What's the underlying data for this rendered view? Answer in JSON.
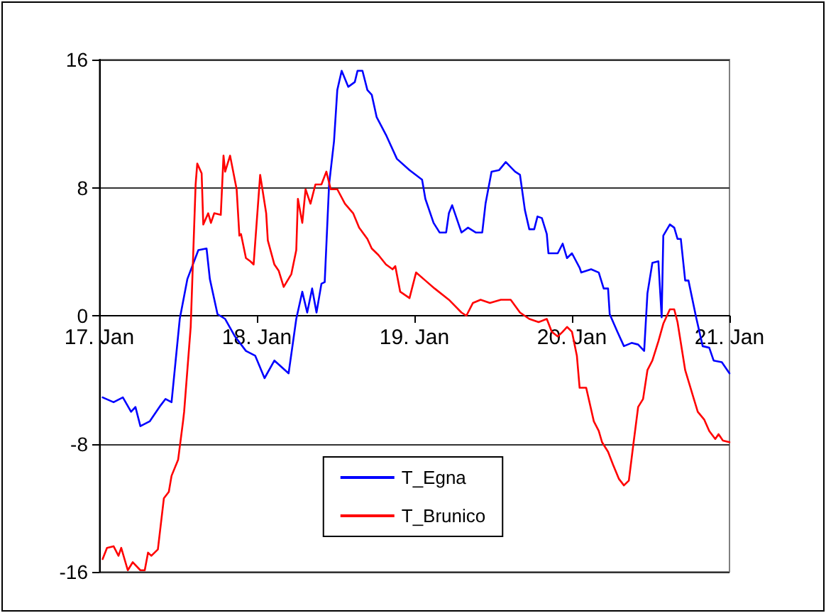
{
  "chart_data": {
    "type": "line",
    "xlim": [
      "--01-17",
      "--01-21"
    ],
    "xticks": [
      {
        "value": "--01-17",
        "label": "17. Jan"
      },
      {
        "value": "--01-18",
        "label": "18. Jan"
      },
      {
        "value": "--01-19",
        "label": "19. Jan"
      },
      {
        "value": "--01-20",
        "label": "20. Jan"
      },
      {
        "value": "--01-21",
        "label": "21. Jan"
      }
    ],
    "ylim": [
      -16,
      16
    ],
    "yticks": [
      -16,
      -8,
      0,
      8,
      16
    ],
    "grid": "y",
    "legend": "bottom",
    "marker": "none",
    "line_style": "solid",
    "series": [
      {
        "name": "T_Egna",
        "color": "#0000ff",
        "x": [
          "--01-17T00:30",
          "--01-17T02:10",
          "--01-17T03:35",
          "--01-17T04:50",
          "--01-17T05:30",
          "--01-17T06:15",
          "--01-17T07:40",
          "--01-17T09:20",
          "--01-17T10:05",
          "--01-17T11:00",
          "--01-17T12:15",
          "--01-17T13:25",
          "--01-17T15:05",
          "--01-17T16:20",
          "--01-17T16:50",
          "--01-17T18:00",
          "--01-17T19:10",
          "--01-17T20:40",
          "--01-17T22:20",
          "--01-17T23:45",
          "--01-18T01:10",
          "--01-18T02:40",
          "--01-18T04:50",
          "--01-18T06:00",
          "--01-18T06:55",
          "--01-18T07:40",
          "--01-18T08:25",
          "--01-18T09:05",
          "--01-18T09:50",
          "--01-18T10:20",
          "--01-18T11:00",
          "--01-18T11:45",
          "--01-18T12:15",
          "--01-18T12:55",
          "--01-18T13:55",
          "--01-18T14:55",
          "--01-18T15:20",
          "--01-18T16:05",
          "--01-18T16:50",
          "--01-18T17:30",
          "--01-18T18:15",
          "--01-18T19:40",
          "--01-18T21:20",
          "--01-18T23:15",
          "--01-19T01:10",
          "--01-19T01:40",
          "--01-19T02:55",
          "--01-19T03:50",
          "--01-19T04:50",
          "--01-19T05:15",
          "--01-19T05:45",
          "--01-19T07:10",
          "--01-19T08:10",
          "--01-19T09:20",
          "--01-19T10:20",
          "--01-19T10:50",
          "--01-19T11:45",
          "--01-19T12:55",
          "--01-19T13:55",
          "--01-19T15:20",
          "--01-19T16:05",
          "--01-19T16:50",
          "--01-19T17:30",
          "--01-19T18:15",
          "--01-19T18:45",
          "--01-19T19:25",
          "--01-19T20:10",
          "--01-19T20:25",
          "--01-19T21:50",
          "--01-19T22:35",
          "--01-19T23:15",
          "--01-20T00:00",
          "--01-20T01:10",
          "--01-20T01:25",
          "--01-20T02:55",
          "--01-20T04:05",
          "--01-20T04:50",
          "--01-20T05:30",
          "--01-20T05:45",
          "--01-20T06:55",
          "--01-20T07:55",
          "--01-20T09:05",
          "--01-20T10:05",
          "--01-20T11:00",
          "--01-20T11:30",
          "--01-20T12:15",
          "--01-20T13:10",
          "--01-20T13:40",
          "--01-20T13:55",
          "--01-20T14:55",
          "--01-20T15:35",
          "--01-20T16:05",
          "--01-20T16:35",
          "--01-20T17:15",
          "--01-20T17:45",
          "--01-20T18:55",
          "--01-20T19:55",
          "--01-20T20:55",
          "--01-20T21:35",
          "--01-20T22:50",
          "--01-21T00:00"
        ],
        "values": [
          -5.1,
          -5.4,
          -5.1,
          -6.0,
          -5.7,
          -6.9,
          -6.6,
          -5.6,
          -5.2,
          -5.4,
          -0.2,
          2.3,
          4.1,
          4.2,
          2.3,
          0.1,
          -0.2,
          -1.3,
          -2.2,
          -2.5,
          -3.9,
          -2.8,
          -3.6,
          -0.2,
          1.5,
          0.2,
          1.7,
          0.2,
          2.0,
          2.1,
          8.2,
          10.9,
          14.1,
          15.3,
          14.3,
          14.6,
          15.3,
          15.3,
          14.1,
          13.8,
          12.4,
          11.3,
          9.8,
          9.1,
          8.5,
          7.3,
          5.8,
          5.2,
          5.2,
          6.4,
          6.9,
          5.2,
          5.5,
          5.2,
          5.2,
          7.0,
          9.0,
          9.1,
          9.6,
          9.0,
          8.8,
          6.6,
          5.4,
          5.4,
          6.2,
          6.1,
          5.1,
          3.9,
          3.9,
          4.5,
          3.6,
          3.9,
          3.0,
          2.7,
          2.9,
          2.7,
          1.7,
          1.7,
          0.1,
          -1.0,
          -1.9,
          -1.7,
          -1.8,
          -2.2,
          1.4,
          3.3,
          3.4,
          -0.1,
          5.0,
          5.7,
          5.5,
          4.8,
          4.8,
          2.2,
          2.2,
          -0.1,
          -1.9,
          -2.0,
          -2.8,
          -2.9,
          -3.6
        ]
      },
      {
        "name": "T_Brunico",
        "color": "#ff0000",
        "x": [
          "--01-17T00:30",
          "--01-17T01:10",
          "--01-17T02:10",
          "--01-17T02:55",
          "--01-17T03:20",
          "--01-17T04:20",
          "--01-17T05:05",
          "--01-17T06:15",
          "--01-17T06:55",
          "--01-17T07:25",
          "--01-17T07:55",
          "--01-17T08:55",
          "--01-17T09:50",
          "--01-17T10:35",
          "--01-17T11:00",
          "--01-17T12:00",
          "--01-17T12:45",
          "--01-17T12:55",
          "--01-17T13:55",
          "--01-17T14:40",
          "--01-17T14:55",
          "--01-17T15:35",
          "--01-17T15:50",
          "--01-17T16:35",
          "--01-17T17:00",
          "--01-17T17:30",
          "--01-17T18:30",
          "--01-17T18:55",
          "--01-17T19:10",
          "--01-17T19:55",
          "--01-17T20:55",
          "--01-17T21:20",
          "--01-17T21:35",
          "--01-17T22:20",
          "--01-17T23:00",
          "--01-17T23:30",
          "--01-18T00:30",
          "--01-18T01:25",
          "--01-18T01:40",
          "--01-18T02:40",
          "--01-18T03:20",
          "--01-18T04:05",
          "--01-18T05:15",
          "--01-18T06:00",
          "--01-18T06:15",
          "--01-18T06:55",
          "--01-18T07:25",
          "--01-18T08:10",
          "--01-18T08:55",
          "--01-18T09:50",
          "--01-18T10:35",
          "--01-18T11:15",
          "--01-18T12:15",
          "--01-18T13:25",
          "--01-18T14:40",
          "--01-18T15:35",
          "--01-18T16:50",
          "--01-18T17:30",
          "--01-18T18:30",
          "--01-18T19:40",
          "--01-18T20:40",
          "--01-18T21:05",
          "--01-18T21:50",
          "--01-18T23:15",
          "--01-19T00:15",
          "--01-19T01:40",
          "--01-19T03:05",
          "--01-19T05:15",
          "--01-19T07:10",
          "--01-19T07:55",
          "--01-19T08:55",
          "--01-19T10:05",
          "--01-19T11:30",
          "--01-19T13:10",
          "--01-19T14:40",
          "--01-19T16:05",
          "--01-19T17:30",
          "--01-19T18:55",
          "--01-19T20:10",
          "--01-19T20:55",
          "--01-19T21:50",
          "--01-19T22:35",
          "--01-19T23:15",
          "--01-20T00:00",
          "--01-20T00:45",
          "--01-20T01:10",
          "--01-20T02:10",
          "--01-20T03:20",
          "--01-20T04:05",
          "--01-20T04:35",
          "--01-20T05:30",
          "--01-20T06:15",
          "--01-20T07:10",
          "--01-20T07:55",
          "--01-20T08:40",
          "--01-20T09:20",
          "--01-20T10:05",
          "--01-20T10:50",
          "--01-20T11:30",
          "--01-20T12:15",
          "--01-20T13:10",
          "--01-20T13:55",
          "--01-20T14:55",
          "--01-20T15:35",
          "--01-20T16:05",
          "--01-20T17:15",
          "--01-20T18:30",
          "--01-20T19:10",
          "--01-20T20:10",
          "--01-20T20:55",
          "--01-20T21:50",
          "--01-20T22:20",
          "--01-20T23:00",
          "--01-21T00:00"
        ],
        "values": [
          -15.2,
          -14.5,
          -14.4,
          -15.0,
          -14.5,
          -15.9,
          -15.4,
          -15.9,
          -15.9,
          -14.8,
          -15.0,
          -14.6,
          -11.4,
          -11.0,
          -10.0,
          -9.0,
          -6.6,
          -6.0,
          -0.7,
          8.2,
          9.5,
          8.9,
          5.7,
          6.4,
          5.8,
          6.4,
          6.3,
          10.0,
          9.0,
          10.0,
          7.9,
          5.0,
          5.1,
          3.6,
          3.4,
          3.2,
          8.8,
          6.4,
          4.7,
          3.2,
          2.8,
          1.8,
          2.6,
          4.1,
          7.3,
          5.8,
          7.9,
          7.0,
          8.2,
          8.2,
          9.0,
          7.9,
          7.9,
          7.0,
          6.4,
          5.5,
          4.8,
          4.2,
          3.8,
          3.2,
          2.9,
          3.1,
          1.5,
          1.1,
          2.7,
          2.2,
          1.7,
          1.0,
          0.2,
          0.0,
          0.8,
          1.0,
          0.8,
          1.0,
          1.0,
          0.2,
          -0.2,
          -0.4,
          -0.2,
          -1.0,
          -1.3,
          -1.0,
          -0.7,
          -1.0,
          -2.5,
          -4.5,
          -4.5,
          -6.6,
          -7.2,
          -7.9,
          -8.5,
          -9.3,
          -10.2,
          -10.6,
          -10.3,
          -8.1,
          -5.7,
          -5.2,
          -3.4,
          -2.8,
          -1.6,
          -0.5,
          0.4,
          0.4,
          -0.4,
          -3.4,
          -5.1,
          -6.0,
          -6.5,
          -7.2,
          -7.7,
          -7.4,
          -7.8,
          -7.9
        ]
      }
    ]
  }
}
